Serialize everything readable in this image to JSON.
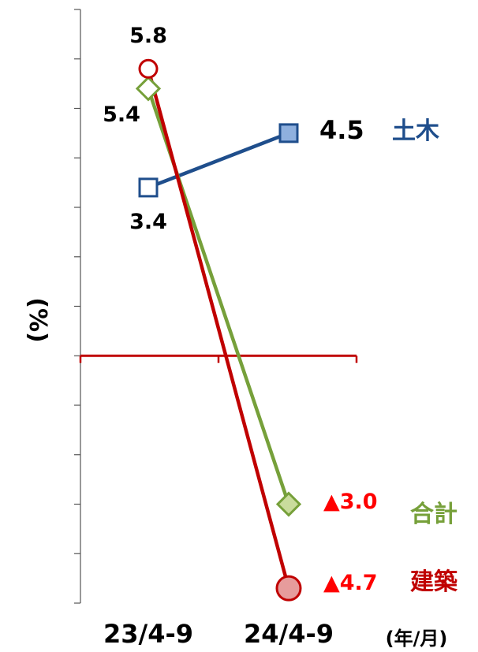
{
  "chart_data": {
    "type": "line",
    "categories": [
      "23/4-9",
      "24/4-9"
    ],
    "ylabel": "(%)",
    "xunit": "(年/月)",
    "ylim": [
      -5.0,
      7.0
    ],
    "ytick_step": 1.0,
    "series": [
      {
        "name": "土木",
        "values": [
          3.4,
          4.5
        ],
        "value_labels": [
          "3.4",
          "4.5"
        ],
        "color": "#1f4e8c",
        "fill": "#8fb0de",
        "marker": "square"
      },
      {
        "name": "合計",
        "values": [
          5.4,
          -3.0
        ],
        "value_labels": [
          "5.4",
          "▲3.0"
        ],
        "color": "#76a03a",
        "fill": "#c9dc9c",
        "marker": "diamond"
      },
      {
        "name": "建築",
        "values": [
          5.8,
          -4.7
        ],
        "value_labels": [
          "5.8",
          "▲4.7"
        ],
        "color": "#c00000",
        "fill": "#e69c9c",
        "marker": "circle"
      }
    ]
  },
  "colors": {
    "axis": "#555555",
    "zero_line": "#c00000",
    "negative_label": "#ff0000",
    "text": "#000000"
  }
}
